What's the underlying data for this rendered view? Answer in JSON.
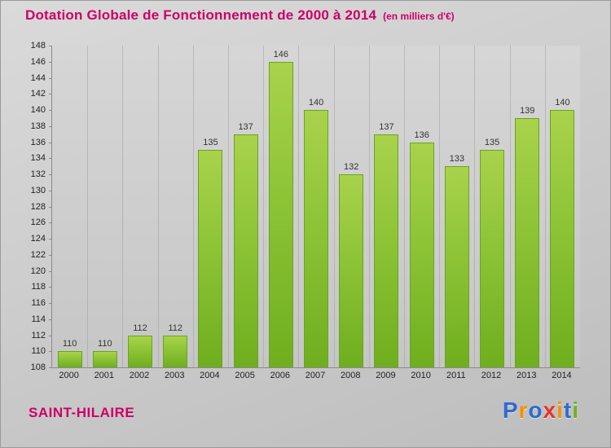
{
  "title": "Dotation Globale de Fonctionnement de 2000 à 2014",
  "subtitle": "(en milliers d'€)",
  "footer": {
    "commune": "SAINT-HILAIRE"
  },
  "logo": {
    "text": "Proxiti",
    "letters": [
      {
        "ch": "P",
        "color": "#2e6bd0"
      },
      {
        "ch": "r",
        "color": "#f39200"
      },
      {
        "ch": "o",
        "color": "#2e6bd0"
      },
      {
        "ch": "x",
        "color": "#e6332a"
      },
      {
        "ch": "i",
        "color": "#f39200"
      },
      {
        "ch": "t",
        "color": "#2e6bd0"
      },
      {
        "ch": "i",
        "color": "#6fb21f"
      }
    ]
  },
  "colors": {
    "accent": "#cc0066",
    "bar_top": "#a9d24c",
    "bar_bottom": "#6fae1e",
    "axis": "#8a8a8a"
  },
  "chart_data": {
    "type": "bar",
    "title": "Dotation Globale de Fonctionnement de 2000 à 2014",
    "subtitle": "(en milliers d'€)",
    "categories": [
      "2000",
      "2001",
      "2002",
      "2003",
      "2004",
      "2005",
      "2006",
      "2007",
      "2008",
      "2009",
      "2010",
      "2011",
      "2012",
      "2013",
      "2014"
    ],
    "values": [
      110,
      110,
      112,
      112,
      135,
      137,
      146,
      140,
      132,
      137,
      136,
      133,
      135,
      139,
      140
    ],
    "xlabel": "",
    "ylabel": "",
    "ylim": [
      108,
      148
    ],
    "ytick_step": 2,
    "grid": "vertical-separators",
    "legend": "none",
    "data_labels": true
  }
}
